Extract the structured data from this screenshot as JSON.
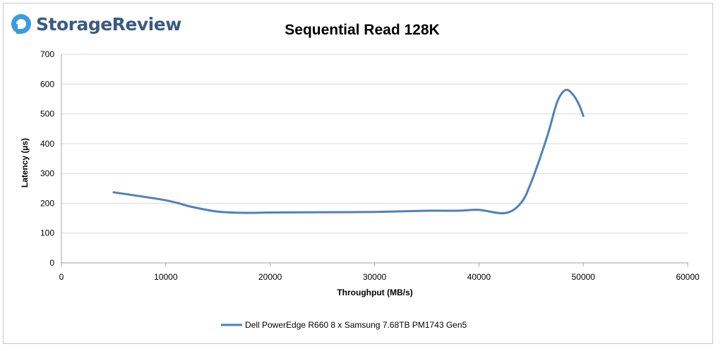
{
  "brand": {
    "name": "StorageReview",
    "color": "#3a5a82",
    "icon_color": "#3b9be0"
  },
  "chart_data": {
    "type": "line",
    "title": "Sequential Read 128K",
    "xlabel": "Throughput (MB/s)",
    "ylabel": "Latency (µs)",
    "xlim": [
      0,
      60000
    ],
    "ylim": [
      0,
      700
    ],
    "xticks": [
      0,
      10000,
      20000,
      30000,
      40000,
      50000,
      60000
    ],
    "yticks": [
      0,
      100,
      200,
      300,
      400,
      500,
      600,
      700
    ],
    "grid": "horizontal",
    "legend": "bottom",
    "series": [
      {
        "name": "Dell PowerEdge R660 8 x Samsung 7.68TB PM1743 Gen5",
        "color": "#4f81bd",
        "x": [
          5000,
          10000,
          12500,
          15000,
          17500,
          20000,
          25000,
          30000,
          35000,
          38000,
          40000,
          42500,
          44000,
          45000,
          46500,
          47500,
          48300,
          49000,
          49600,
          50000
        ],
        "y": [
          237,
          210,
          188,
          172,
          168,
          169,
          170,
          171,
          175,
          175,
          178,
          167,
          200,
          270,
          420,
          540,
          580,
          565,
          530,
          493
        ]
      }
    ]
  }
}
